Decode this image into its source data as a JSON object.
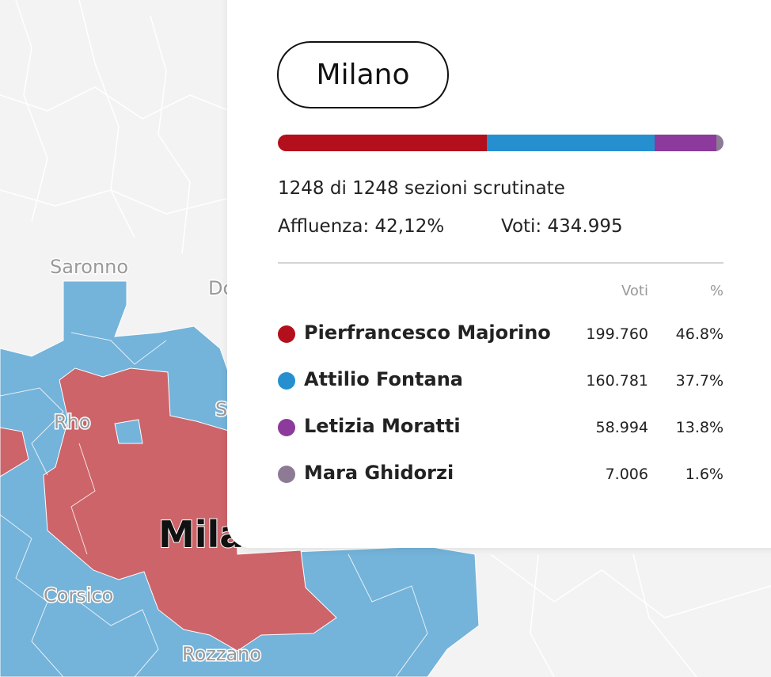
{
  "map": {
    "labels": [
      "Saronno",
      "Do",
      "Rho",
      "S",
      "Milan",
      "Corsico",
      "Rozzano"
    ]
  },
  "card": {
    "title": "Milano",
    "sections": "1248 di 1248 sezioni scrutinate",
    "turnout": "Affluenza: 42,12%",
    "votes_total": "Voti: 434.995",
    "headers": [
      "Voti",
      "%"
    ],
    "candidates": [
      {
        "name": "Pierfrancesco Majorino",
        "color": "#b30f1c",
        "votes": {
          "value": 199760,
          "label": "199.760"
        },
        "pct": "46.8%"
      },
      {
        "name": "Attilio Fontana",
        "color": "#258fd0",
        "votes": {
          "value": 160781,
          "label": "160.781"
        },
        "pct": "37.7%"
      },
      {
        "name": "Letizia Moratti",
        "color": "#8c3a9c",
        "votes": {
          "value": 58994,
          "label": "58.994"
        },
        "pct": "13.8%"
      },
      {
        "name": "Mara Ghidorzi",
        "color": "#8d7a95",
        "votes": {
          "value": 7006,
          "label": "7.006"
        },
        "pct": "1.6%"
      }
    ]
  }
}
